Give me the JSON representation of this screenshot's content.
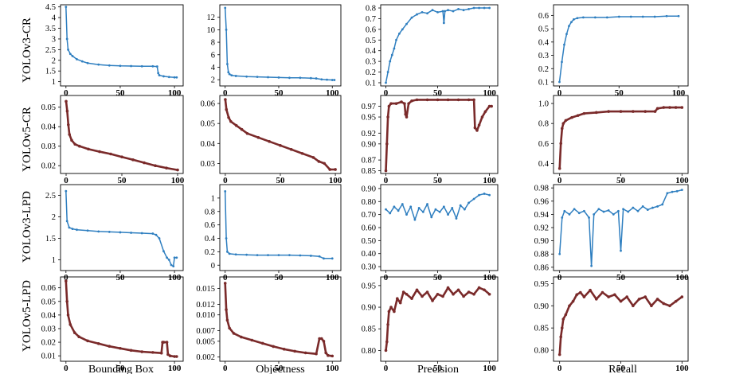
{
  "figure": {
    "row_labels": [
      "YOLOv3-CR",
      "YOLOv5-CR",
      "YOLOv3-LPD",
      "YOLOv5-LPD"
    ],
    "column_titles": [
      "Bounding Box",
      "Objectness",
      "Precision",
      "Recall"
    ]
  },
  "colors": {
    "blue": "#2f7fc0",
    "brown": "#7a2a2a"
  },
  "chart_data": [
    {
      "id": "r0c0",
      "row": "YOLOv3-CR",
      "column": "Bounding Box",
      "type": "line",
      "color": "blue",
      "xlim": [
        -5,
        108
      ],
      "ylim": [
        0.8,
        4.6
      ],
      "xticks": [
        0,
        50,
        100
      ],
      "xtick_labels": [
        "0",
        "50",
        "100"
      ],
      "yticks": [
        1,
        1.5,
        2,
        2.5,
        3,
        3.5,
        4,
        4.5
      ],
      "ytick_labels": [
        "1",
        "1.5",
        "2",
        "2.5",
        "3",
        "3.5",
        "4",
        "4.5"
      ],
      "x": [
        0,
        1,
        2,
        4,
        6,
        10,
        15,
        20,
        30,
        40,
        50,
        60,
        70,
        80,
        84,
        85,
        86,
        90,
        95,
        100,
        102
      ],
      "values": [
        4.5,
        3.0,
        2.5,
        2.3,
        2.2,
        2.05,
        1.95,
        1.87,
        1.8,
        1.76,
        1.74,
        1.73,
        1.72,
        1.72,
        1.71,
        1.4,
        1.3,
        1.25,
        1.22,
        1.2,
        1.2
      ]
    },
    {
      "id": "r0c1",
      "row": "YOLOv3-CR",
      "column": "Objectness",
      "type": "line",
      "color": "blue",
      "xlim": [
        -5,
        108
      ],
      "ylim": [
        1,
        14
      ],
      "xticks": [
        0,
        50,
        100
      ],
      "xtick_labels": [
        "0",
        "50",
        "100"
      ],
      "yticks": [
        2,
        4,
        6,
        8,
        10,
        12
      ],
      "ytick_labels": [
        "2",
        "4",
        "6",
        "8",
        "10",
        "12"
      ],
      "x": [
        0,
        1,
        2,
        3,
        4,
        6,
        10,
        20,
        30,
        40,
        50,
        60,
        70,
        80,
        85,
        90,
        95,
        100,
        102
      ],
      "values": [
        13.5,
        10.0,
        4.5,
        3.2,
        2.9,
        2.7,
        2.6,
        2.5,
        2.45,
        2.4,
        2.35,
        2.3,
        2.3,
        2.25,
        2.2,
        2.05,
        2.0,
        1.95,
        1.95
      ]
    },
    {
      "id": "r0c2",
      "row": "YOLOv3-CR",
      "column": "Precision",
      "type": "line",
      "color": "blue",
      "xlim": [
        -5,
        108
      ],
      "ylim": [
        0.07,
        0.83
      ],
      "xticks": [
        0,
        50,
        100
      ],
      "xtick_labels": [
        "0",
        "50",
        "100"
      ],
      "yticks": [
        0.1,
        0.2,
        0.3,
        0.4,
        0.5,
        0.6,
        0.7,
        0.8
      ],
      "ytick_labels": [
        "0.1",
        "0.2",
        "0.3",
        "0.4",
        "0.5",
        "0.6",
        "0.7",
        "0.8"
      ],
      "x": [
        0,
        2,
        4,
        6,
        8,
        10,
        13,
        16,
        20,
        25,
        30,
        35,
        40,
        45,
        50,
        55,
        56,
        57,
        60,
        65,
        70,
        75,
        80,
        85,
        90,
        95,
        100
      ],
      "values": [
        0.1,
        0.2,
        0.3,
        0.36,
        0.42,
        0.5,
        0.56,
        0.6,
        0.65,
        0.71,
        0.74,
        0.76,
        0.75,
        0.78,
        0.76,
        0.77,
        0.66,
        0.77,
        0.78,
        0.77,
        0.79,
        0.78,
        0.79,
        0.8,
        0.8,
        0.8,
        0.8
      ]
    },
    {
      "id": "r0c3",
      "row": "YOLOv3-CR",
      "column": "Recall",
      "type": "line",
      "color": "blue",
      "xlim": [
        -5,
        108
      ],
      "ylim": [
        0.07,
        0.68
      ],
      "xticks": [
        0,
        50,
        100
      ],
      "xtick_labels": [
        "0",
        "50",
        "100"
      ],
      "yticks": [
        0.1,
        0.2,
        0.3,
        0.4,
        0.5,
        0.6
      ],
      "ytick_labels": [
        "0.1",
        "0.2",
        "0.3",
        "0.4",
        "0.5",
        "0.6"
      ],
      "x": [
        0,
        2,
        4,
        6,
        8,
        10,
        12,
        15,
        20,
        30,
        40,
        50,
        60,
        70,
        80,
        90,
        100
      ],
      "values": [
        0.1,
        0.25,
        0.38,
        0.46,
        0.52,
        0.55,
        0.57,
        0.58,
        0.585,
        0.585,
        0.585,
        0.59,
        0.59,
        0.59,
        0.59,
        0.595,
        0.595
      ]
    },
    {
      "id": "r1c0",
      "row": "YOLOv5-CR",
      "column": "Bounding Box",
      "type": "line",
      "color": "brown",
      "xlim": [
        -5,
        105
      ],
      "ylim": [
        0.016,
        0.056
      ],
      "xticks": [
        0,
        50,
        100
      ],
      "xtick_labels": [
        "0",
        "50",
        "100"
      ],
      "yticks": [
        0.02,
        0.03,
        0.04,
        0.05
      ],
      "ytick_labels": [
        "0.02",
        "0.03",
        "0.04",
        "0.05"
      ],
      "x": [
        0,
        1,
        2,
        3,
        5,
        8,
        12,
        20,
        30,
        40,
        50,
        60,
        70,
        80,
        90,
        100
      ],
      "values": [
        0.053,
        0.048,
        0.041,
        0.036,
        0.033,
        0.031,
        0.03,
        0.0285,
        0.0272,
        0.026,
        0.0245,
        0.023,
        0.0215,
        0.02,
        0.0188,
        0.0178
      ]
    },
    {
      "id": "r1c1",
      "row": "YOLOv5-CR",
      "column": "Objectness",
      "type": "line",
      "color": "brown",
      "xlim": [
        -5,
        105
      ],
      "ylim": [
        0.025,
        0.064
      ],
      "xticks": [
        0,
        50,
        100
      ],
      "xtick_labels": [
        "0",
        "50",
        "100"
      ],
      "yticks": [
        0.03,
        0.04,
        0.05,
        0.06
      ],
      "ytick_labels": [
        "0.03",
        "0.04",
        "0.05",
        "0.06"
      ],
      "x": [
        0,
        1,
        3,
        5,
        10,
        15,
        20,
        30,
        40,
        50,
        60,
        70,
        80,
        85,
        90,
        95,
        100
      ],
      "values": [
        0.062,
        0.057,
        0.053,
        0.051,
        0.049,
        0.047,
        0.045,
        0.043,
        0.041,
        0.039,
        0.037,
        0.035,
        0.033,
        0.031,
        0.03,
        0.027,
        0.027
      ]
    },
    {
      "id": "r1c2",
      "row": "YOLOv5-CR",
      "column": "Precision",
      "type": "line",
      "color": "brown",
      "xlim": [
        -5,
        108
      ],
      "ylim": [
        0.845,
        0.99
      ],
      "xticks": [
        0,
        50,
        100
      ],
      "xtick_labels": [
        "0",
        "50",
        "100"
      ],
      "yticks": [
        0.85,
        0.87,
        0.9,
        0.92,
        0.95,
        0.97
      ],
      "ytick_labels": [
        "0.85",
        "0.87",
        "0.90",
        "0.92",
        "0.95",
        "0.97"
      ],
      "x": [
        0,
        1,
        2,
        3,
        5,
        10,
        15,
        18,
        19,
        20,
        22,
        25,
        30,
        40,
        50,
        60,
        70,
        80,
        85,
        86,
        88,
        90,
        93,
        96,
        100,
        102
      ],
      "values": [
        0.85,
        0.9,
        0.95,
        0.97,
        0.975,
        0.975,
        0.978,
        0.975,
        0.955,
        0.95,
        0.975,
        0.98,
        0.982,
        0.982,
        0.982,
        0.982,
        0.982,
        0.982,
        0.982,
        0.93,
        0.925,
        0.935,
        0.95,
        0.96,
        0.97,
        0.97
      ]
    },
    {
      "id": "r1c3",
      "row": "YOLOv5-CR",
      "column": "Recall",
      "type": "line",
      "color": "brown",
      "xlim": [
        -5,
        105
      ],
      "ylim": [
        0.3,
        1.08
      ],
      "xticks": [
        0,
        50,
        100
      ],
      "xtick_labels": [
        "0",
        "50",
        "100"
      ],
      "yticks": [
        0.4,
        0.6,
        0.8,
        1.0
      ],
      "ytick_labels": [
        "0.4",
        "0.6",
        "0.8",
        "1.0"
      ],
      "x": [
        0,
        1,
        2,
        3,
        5,
        10,
        15,
        20,
        30,
        40,
        50,
        60,
        70,
        78,
        80,
        85,
        90,
        95,
        100
      ],
      "values": [
        0.35,
        0.6,
        0.75,
        0.8,
        0.83,
        0.86,
        0.88,
        0.9,
        0.91,
        0.92,
        0.92,
        0.92,
        0.92,
        0.92,
        0.95,
        0.96,
        0.96,
        0.96,
        0.96
      ]
    },
    {
      "id": "r2c0",
      "row": "YOLOv3-LPD",
      "column": "Bounding Box",
      "type": "line",
      "color": "blue",
      "xlim": [
        -5,
        108
      ],
      "ylim": [
        0.75,
        2.75
      ],
      "xticks": [
        0,
        50,
        100
      ],
      "xtick_labels": [
        "0",
        "50",
        "100"
      ],
      "yticks": [
        1,
        1.5,
        2,
        2.5
      ],
      "ytick_labels": [
        "1",
        "1.5",
        "2",
        "2.5"
      ],
      "x": [
        0,
        1,
        3,
        6,
        10,
        20,
        30,
        40,
        50,
        60,
        70,
        80,
        83,
        86,
        90,
        93,
        95,
        97,
        99,
        100,
        102
      ],
      "values": [
        2.6,
        1.9,
        1.75,
        1.72,
        1.7,
        1.68,
        1.66,
        1.65,
        1.64,
        1.63,
        1.62,
        1.61,
        1.58,
        1.5,
        1.2,
        1.05,
        1.0,
        0.88,
        0.85,
        1.05,
        1.05
      ]
    },
    {
      "id": "r2c1",
      "row": "YOLOv3-LPD",
      "column": "Objectness",
      "type": "line",
      "color": "blue",
      "xlim": [
        -5,
        108
      ],
      "ylim": [
        -0.08,
        1.2
      ],
      "xticks": [
        0,
        50,
        100
      ],
      "xtick_labels": [
        "0",
        "50",
        "100"
      ],
      "yticks": [
        0,
        0.2,
        0.4,
        0.6,
        0.8,
        1
      ],
      "ytick_labels": [
        "0",
        "0.2",
        "0.4",
        "0.6",
        "0.8",
        "1"
      ],
      "x": [
        0,
        1,
        2,
        4,
        10,
        20,
        30,
        40,
        50,
        60,
        70,
        80,
        88,
        92,
        100
      ],
      "values": [
        1.1,
        0.4,
        0.2,
        0.17,
        0.16,
        0.155,
        0.15,
        0.15,
        0.15,
        0.15,
        0.145,
        0.14,
        0.13,
        0.1,
        0.1
      ]
    },
    {
      "id": "r2c2",
      "row": "YOLOv3-LPD",
      "column": "Precision",
      "type": "line",
      "color": "blue",
      "xlim": [
        -5,
        108
      ],
      "ylim": [
        0.27,
        0.93
      ],
      "xticks": [
        0,
        50,
        100
      ],
      "xtick_labels": [
        "0",
        "50",
        "100"
      ],
      "yticks": [
        0.3,
        0.4,
        0.5,
        0.6,
        0.7,
        0.8,
        0.9
      ],
      "ytick_labels": [
        "0.30",
        "0.40",
        "0.50",
        "0.60",
        "0.70",
        "0.80",
        "0.90"
      ],
      "x": [
        0,
        4,
        8,
        12,
        16,
        20,
        24,
        28,
        32,
        36,
        40,
        44,
        48,
        52,
        56,
        60,
        64,
        68,
        72,
        76,
        80,
        85,
        90,
        95,
        100
      ],
      "values": [
        0.74,
        0.71,
        0.76,
        0.73,
        0.78,
        0.7,
        0.76,
        0.66,
        0.75,
        0.72,
        0.78,
        0.68,
        0.74,
        0.72,
        0.76,
        0.7,
        0.75,
        0.67,
        0.77,
        0.74,
        0.79,
        0.82,
        0.85,
        0.86,
        0.85
      ]
    },
    {
      "id": "r2c3",
      "row": "YOLOv3-LPD",
      "column": "Recall",
      "type": "line",
      "color": "blue",
      "xlim": [
        -5,
        105
      ],
      "ylim": [
        0.855,
        0.985
      ],
      "xticks": [
        0,
        50,
        100
      ],
      "xtick_labels": [
        "0",
        "50",
        "100"
      ],
      "yticks": [
        0.86,
        0.88,
        0.9,
        0.92,
        0.94,
        0.96,
        0.98
      ],
      "ytick_labels": [
        "0.86",
        "0.88",
        "0.90",
        "0.92",
        "0.94",
        "0.96",
        "0.98"
      ],
      "x": [
        0,
        2,
        4,
        8,
        12,
        16,
        20,
        24,
        26,
        28,
        32,
        36,
        40,
        44,
        48,
        50,
        52,
        56,
        60,
        64,
        68,
        72,
        76,
        80,
        84,
        88,
        92,
        96,
        100
      ],
      "values": [
        0.88,
        0.935,
        0.945,
        0.94,
        0.948,
        0.942,
        0.945,
        0.935,
        0.862,
        0.94,
        0.948,
        0.944,
        0.946,
        0.94,
        0.945,
        0.885,
        0.948,
        0.944,
        0.95,
        0.945,
        0.952,
        0.947,
        0.95,
        0.952,
        0.955,
        0.972,
        0.974,
        0.975,
        0.977
      ]
    },
    {
      "id": "r3c0",
      "row": "YOLOv5-LPD",
      "column": "Bounding Box",
      "type": "line",
      "color": "brown",
      "xlim": [
        -5,
        108
      ],
      "ylim": [
        0.006,
        0.068
      ],
      "xticks": [
        0,
        50,
        100
      ],
      "xtick_labels": [
        "0",
        "50",
        "100"
      ],
      "yticks": [
        0.01,
        0.02,
        0.03,
        0.04,
        0.05,
        0.06
      ],
      "ytick_labels": [
        "0.01",
        "0.02",
        "0.03",
        "0.04",
        "0.05",
        "0.06"
      ],
      "x": [
        0,
        1,
        2,
        4,
        8,
        12,
        20,
        30,
        40,
        50,
        60,
        70,
        80,
        88,
        89,
        90,
        93,
        94,
        96,
        100,
        102
      ],
      "values": [
        0.065,
        0.05,
        0.04,
        0.033,
        0.027,
        0.024,
        0.021,
        0.019,
        0.017,
        0.0155,
        0.014,
        0.013,
        0.0125,
        0.012,
        0.02,
        0.02,
        0.02,
        0.011,
        0.01,
        0.0095,
        0.0095
      ]
    },
    {
      "id": "r3c1",
      "row": "YOLOv5-LPD",
      "column": "Objectness",
      "type": "line",
      "color": "brown",
      "xlim": [
        -5,
        108
      ],
      "ylim": [
        0.0012,
        0.0172
      ],
      "xticks": [
        0,
        50,
        100
      ],
      "xtick_labels": [
        "0",
        "50",
        "100"
      ],
      "yticks": [
        0.002,
        0.005,
        0.007,
        0.01,
        0.012,
        0.015
      ],
      "ytick_labels": [
        "0.002",
        "0.005",
        "0.007",
        "0.010",
        "0.012",
        "0.015"
      ],
      "x": [
        0,
        1,
        2,
        4,
        8,
        15,
        25,
        35,
        45,
        55,
        65,
        75,
        85,
        88,
        90,
        92,
        94,
        96,
        100
      ],
      "values": [
        0.016,
        0.011,
        0.009,
        0.0075,
        0.0065,
        0.0058,
        0.0052,
        0.0046,
        0.004,
        0.0035,
        0.0031,
        0.0028,
        0.0026,
        0.0055,
        0.0055,
        0.005,
        0.0028,
        0.0023,
        0.0022
      ]
    },
    {
      "id": "r3c2",
      "row": "YOLOv5-LPD",
      "column": "Precision",
      "type": "line",
      "color": "brown",
      "xlim": [
        -5,
        108
      ],
      "ylim": [
        0.775,
        0.97
      ],
      "xticks": [
        0,
        50,
        100
      ],
      "xtick_labels": [
        "0",
        "50",
        "100"
      ],
      "yticks": [
        0.8,
        0.85,
        0.9,
        0.95
      ],
      "ytick_labels": [
        "0.80",
        "0.85",
        "0.90",
        "0.95"
      ],
      "x": [
        0,
        1,
        2,
        3,
        5,
        8,
        11,
        14,
        17,
        20,
        25,
        30,
        35,
        40,
        45,
        50,
        55,
        60,
        65,
        70,
        75,
        80,
        85,
        90,
        95,
        100
      ],
      "values": [
        0.8,
        0.82,
        0.86,
        0.89,
        0.9,
        0.89,
        0.92,
        0.91,
        0.935,
        0.93,
        0.92,
        0.94,
        0.925,
        0.935,
        0.915,
        0.93,
        0.925,
        0.945,
        0.93,
        0.94,
        0.925,
        0.935,
        0.93,
        0.945,
        0.94,
        0.93
      ]
    },
    {
      "id": "r3c3",
      "row": "YOLOv5-LPD",
      "column": "Recall",
      "type": "line",
      "color": "brown",
      "xlim": [
        -5,
        105
      ],
      "ylim": [
        0.775,
        0.965
      ],
      "xticks": [
        0,
        50,
        100
      ],
      "xtick_labels": [
        "0",
        "50",
        "100"
      ],
      "yticks": [
        0.8,
        0.85,
        0.9,
        0.95
      ],
      "ytick_labels": [
        "0.80",
        "0.85",
        "0.90",
        "0.95"
      ],
      "x": [
        0,
        1,
        2,
        3,
        5,
        8,
        11,
        14,
        17,
        20,
        25,
        30,
        35,
        40,
        45,
        50,
        55,
        60,
        65,
        70,
        75,
        80,
        85,
        90,
        95,
        100
      ],
      "values": [
        0.79,
        0.83,
        0.85,
        0.87,
        0.88,
        0.9,
        0.91,
        0.925,
        0.93,
        0.92,
        0.935,
        0.915,
        0.93,
        0.92,
        0.925,
        0.91,
        0.92,
        0.9,
        0.915,
        0.92,
        0.9,
        0.915,
        0.905,
        0.9,
        0.91,
        0.92
      ]
    }
  ]
}
